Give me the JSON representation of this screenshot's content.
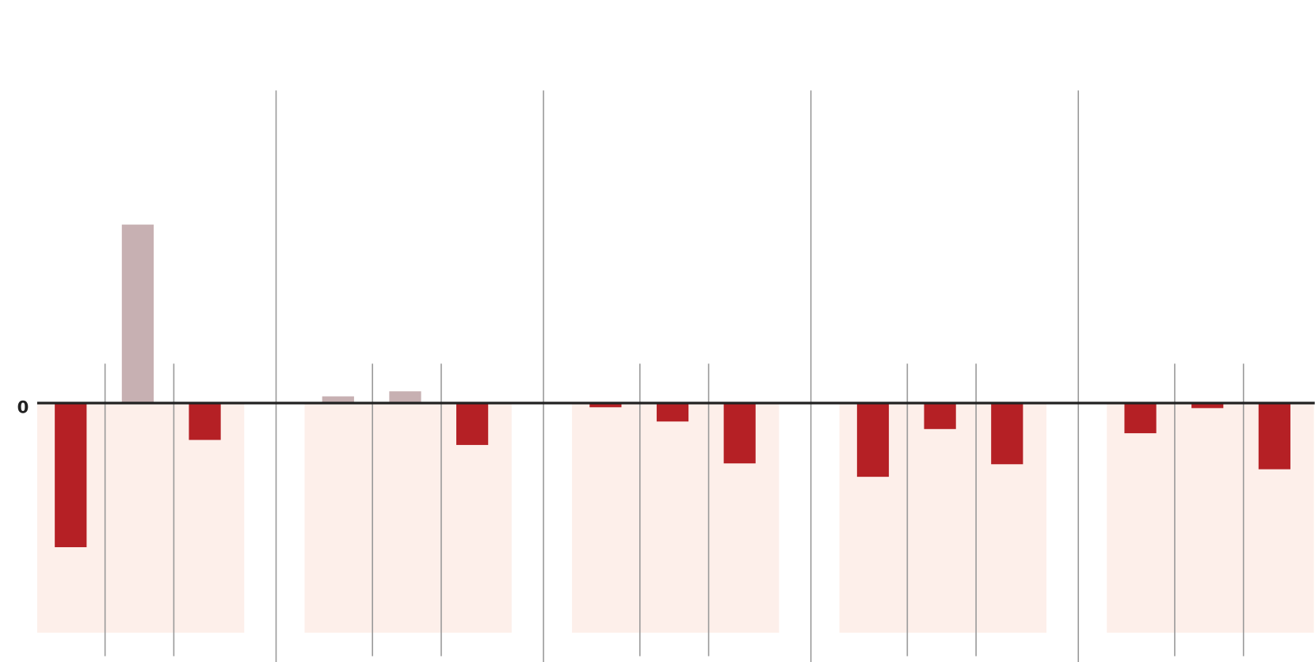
{
  "chart_data": {
    "type": "bar",
    "categories": [
      null,
      null,
      null,
      null,
      null,
      null,
      null,
      null,
      null,
      null,
      null,
      null,
      null,
      null,
      null
    ],
    "values": [
      -172,
      213,
      -44,
      8,
      14,
      -50,
      -5,
      -22,
      -72,
      -88,
      -31,
      -73,
      -36,
      -6,
      -79
    ],
    "positive_color": "#c7b0b2",
    "negative_color": "#b52025",
    "group_color": "#fdefea",
    "ylim": [
      -309,
      373
    ],
    "yticks": [
      0
    ]
  }
}
